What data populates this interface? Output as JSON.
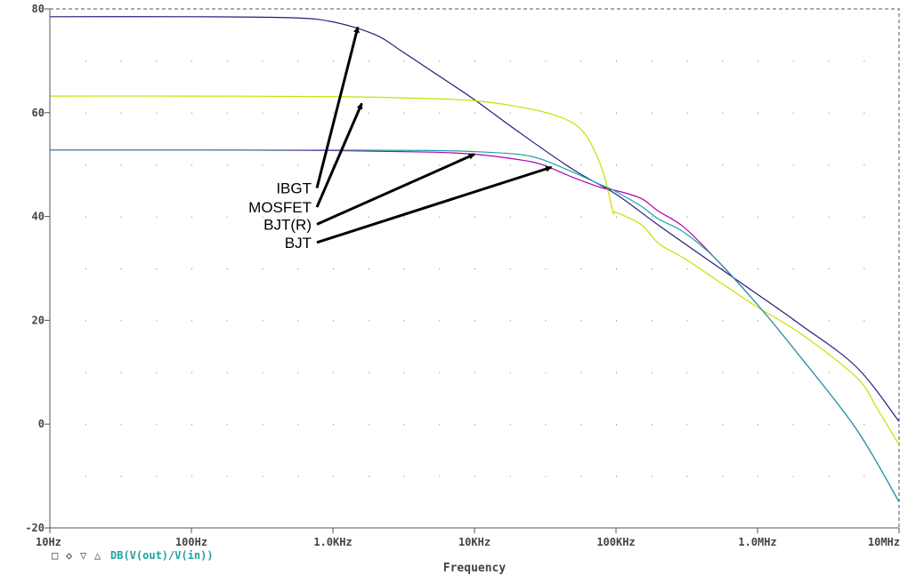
{
  "chart_data": {
    "type": "line",
    "title": "",
    "xlabel": "Frequency",
    "ylabel": "",
    "x_scale": "log",
    "xlim": [
      10,
      10000000
    ],
    "ylim": [
      -20,
      80
    ],
    "grid": true,
    "x_ticks": [
      10,
      100,
      1000,
      10000,
      100000,
      1000000,
      10000000
    ],
    "x_tick_labels": [
      "10Hz",
      "100Hz",
      "1.0KHz",
      "10KHz",
      "100KHz",
      "1.0MHz",
      "10MHz"
    ],
    "y_ticks": [
      -20,
      0,
      20,
      40,
      60,
      80
    ],
    "y_tick_labels": [
      "-20",
      "0",
      "20",
      "40",
      "60",
      "80"
    ],
    "legend": {
      "placement": "bottom-left",
      "text": "DB(V(out)/V(in))",
      "markers": [
        {
          "symbol": "□",
          "color": "#b000b0"
        },
        {
          "symbol": "◇",
          "color": "#1aa3a3"
        },
        {
          "symbol": "▽",
          "color": "#c8e000"
        },
        {
          "symbol": "△",
          "color": "#20207a"
        }
      ]
    },
    "series": [
      {
        "color": "#20207a",
        "points": [
          [
            10,
            78.5
          ],
          [
            100,
            78.5
          ],
          [
            500,
            78.3
          ],
          [
            1000,
            77.5
          ],
          [
            2000,
            75
          ],
          [
            3000,
            72
          ],
          [
            5000,
            68
          ],
          [
            10000,
            62.5
          ],
          [
            20000,
            56.5
          ],
          [
            50000,
            49
          ],
          [
            100000,
            44.3
          ],
          [
            200000,
            38.3
          ],
          [
            500000,
            30.7
          ],
          [
            1000000,
            25
          ],
          [
            2000000,
            19.2
          ],
          [
            5000000,
            11
          ],
          [
            10000000,
            0.5
          ]
        ]
      },
      {
        "color": "#c8e000",
        "points": [
          [
            10,
            63.2
          ],
          [
            100,
            63.2
          ],
          [
            1000,
            63.1
          ],
          [
            5000,
            62.7
          ],
          [
            10000,
            62.3
          ],
          [
            20000,
            61.2
          ],
          [
            40000,
            59.2
          ],
          [
            60000,
            56
          ],
          [
            80000,
            49
          ],
          [
            95000,
            41
          ],
          [
            100000,
            40.8
          ],
          [
            150000,
            38.5
          ],
          [
            200000,
            34.8
          ],
          [
            300000,
            32
          ],
          [
            500000,
            28
          ],
          [
            1000000,
            22.5
          ],
          [
            2000000,
            17.5
          ],
          [
            5000000,
            9
          ],
          [
            7000000,
            3
          ],
          [
            10000000,
            -4
          ]
        ]
      },
      {
        "color": "#b000b0",
        "points": [
          [
            10,
            52.8
          ],
          [
            100,
            52.8
          ],
          [
            1000,
            52.7
          ],
          [
            5000,
            52.4
          ],
          [
            10000,
            52
          ],
          [
            20000,
            51
          ],
          [
            30000,
            50
          ],
          [
            50000,
            47.5
          ],
          [
            80000,
            45.5
          ],
          [
            100000,
            45
          ],
          [
            150000,
            43.5
          ],
          [
            200000,
            41
          ],
          [
            300000,
            38
          ],
          [
            500000,
            32
          ],
          [
            1000000,
            23
          ],
          [
            2000000,
            13
          ],
          [
            5000000,
            -1
          ],
          [
            10000000,
            -15
          ]
        ]
      },
      {
        "color": "#1aa3a3",
        "points": [
          [
            10,
            52.8
          ],
          [
            100,
            52.8
          ],
          [
            1000,
            52.8
          ],
          [
            5000,
            52.7
          ],
          [
            10000,
            52.5
          ],
          [
            20000,
            52
          ],
          [
            30000,
            51
          ],
          [
            50000,
            48.5
          ],
          [
            80000,
            46
          ],
          [
            100000,
            44.8
          ],
          [
            150000,
            42
          ],
          [
            200000,
            39.5
          ],
          [
            300000,
            37
          ],
          [
            500000,
            32
          ],
          [
            1000000,
            23
          ],
          [
            2000000,
            13
          ],
          [
            5000000,
            -1
          ],
          [
            10000000,
            -15
          ]
        ]
      }
    ],
    "annotations": [
      {
        "text": "IBGT",
        "from": [
          1000,
          45.5
        ],
        "to": [
          1500,
          76.5
        ]
      },
      {
        "text": "MOSFET",
        "from": [
          1000,
          41.8
        ],
        "to": [
          1600,
          61.8
        ]
      },
      {
        "text": "BJT(R)",
        "from": [
          1000,
          38.5
        ],
        "to": [
          10000,
          52
        ]
      },
      {
        "text": "BJT",
        "from": [
          1000,
          35
        ],
        "to": [
          35000,
          49.5
        ]
      }
    ]
  }
}
